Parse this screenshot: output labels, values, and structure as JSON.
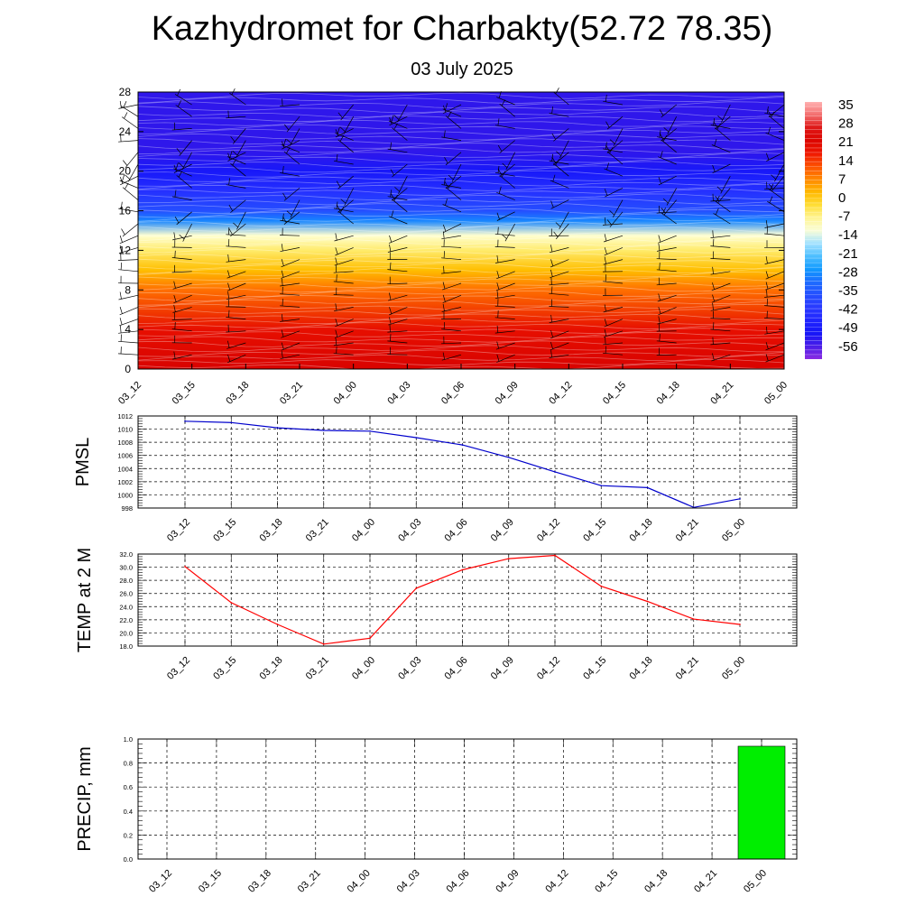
{
  "title": "Kazhydromet for Charbakty(52.72 78.35)",
  "subtitle": "03 July 2025",
  "chart_data": [
    {
      "type": "heatmap",
      "name": "wind-temperature-cross-section",
      "ylabel": "",
      "ylim": [
        0,
        28
      ],
      "y_ticks": [
        "0",
        "4",
        "8",
        "12",
        "16",
        "20",
        "24",
        "28"
      ],
      "x_ticks": [
        "03_12",
        "03_15",
        "03_18",
        "03_21",
        "04_00",
        "04_03",
        "04_06",
        "04_09",
        "04_12",
        "04_15",
        "04_18",
        "04_21",
        "05_00"
      ],
      "colorbar_labels": [
        "35",
        "28",
        "21",
        "14",
        "7",
        "0",
        "-7",
        "-14",
        "-21",
        "-28",
        "-35",
        "-42",
        "-49",
        "-56"
      ],
      "temperature_profile": [
        {
          "level": 0,
          "value": 24
        },
        {
          "level": 4,
          "value": 20
        },
        {
          "level": 8,
          "value": 10
        },
        {
          "level": 10,
          "value": 2
        },
        {
          "level": 12,
          "value": -5
        },
        {
          "level": 13.5,
          "value": -12
        },
        {
          "level": 15,
          "value": -30
        },
        {
          "level": 16,
          "value": -38
        },
        {
          "level": 18,
          "value": -45
        },
        {
          "level": 20,
          "value": -52
        },
        {
          "level": 22,
          "value": -57
        },
        {
          "level": 28,
          "value": -57
        }
      ]
    },
    {
      "type": "line",
      "ylabel": "PMSL",
      "ylim": [
        998,
        1012
      ],
      "y_ticks": [
        "998",
        "1000",
        "1002",
        "1004",
        "1006",
        "1008",
        "1010",
        "1012"
      ],
      "categories": [
        "03_12",
        "03_15",
        "03_18",
        "03_21",
        "04_00",
        "04_03",
        "04_06",
        "04_09",
        "04_12",
        "04_15",
        "04_18",
        "04_21",
        "05_00"
      ],
      "values": [
        1011.2,
        1011.0,
        1010.2,
        1009.8,
        1009.7,
        1008.7,
        1007.6,
        1005.7,
        1003.5,
        1001.4,
        1001.1,
        998.1,
        999.4
      ],
      "color": "#0000cc"
    },
    {
      "type": "line",
      "ylabel": "TEMP at 2 M",
      "ylim": [
        18,
        32
      ],
      "y_ticks": [
        "18.0",
        "20.0",
        "22.0",
        "24.0",
        "26.0",
        "28.0",
        "30.0",
        "32.0"
      ],
      "categories": [
        "03_12",
        "03_15",
        "03_18",
        "03_21",
        "04_00",
        "04_03",
        "04_06",
        "04_09",
        "04_12",
        "04_15",
        "04_18",
        "04_21",
        "05_00"
      ],
      "values": [
        30.1,
        24.6,
        21.3,
        18.3,
        19.2,
        26.8,
        29.6,
        31.3,
        31.8,
        27.1,
        24.8,
        22.1,
        21.3
      ],
      "color": "#ff0000"
    },
    {
      "type": "bar",
      "ylabel": "PRECIP, mm",
      "ylim": [
        0,
        1
      ],
      "y_ticks": [
        "0.0",
        "0.2",
        "0.4",
        "0.6",
        "0.8",
        "1.0"
      ],
      "categories": [
        "03_12",
        "03_15",
        "03_18",
        "03_21",
        "04_00",
        "04_03",
        "04_06",
        "04_09",
        "04_12",
        "04_15",
        "04_18",
        "04_21",
        "05_00"
      ],
      "values": [
        0,
        0,
        0,
        0,
        0,
        0,
        0,
        0,
        0,
        0,
        0,
        0,
        0.94
      ],
      "color": "#00ee00"
    }
  ]
}
